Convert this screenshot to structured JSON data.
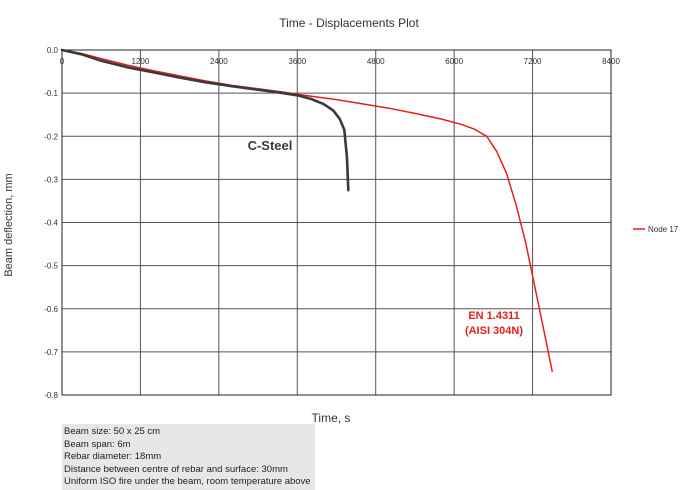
{
  "chart_data": {
    "type": "line",
    "title": "Time - Displacements Plot",
    "xlabel": "Time, s",
    "ylabel": "Beam deflection, mm",
    "xlim": [
      0,
      8400
    ],
    "ylim": [
      -0.8,
      0.0
    ],
    "x_ticks": [
      "0",
      "1200",
      "2400",
      "3600",
      "4800",
      "6000",
      "7200",
      "8400"
    ],
    "y_ticks": [
      "0.0",
      "-0.1",
      "-0.2",
      "-0.3",
      "-0.4",
      "-0.5",
      "-0.6",
      "-0.7",
      "-0.8"
    ],
    "grid": true,
    "legend": {
      "position": "right",
      "entries": [
        "Node 17"
      ]
    },
    "series": [
      {
        "name": "Node 17",
        "color": "#e3201b",
        "x": [
          0,
          300,
          600,
          1000,
          1400,
          1800,
          2200,
          2600,
          3000,
          3400,
          3800,
          4200,
          4600,
          5000,
          5400,
          5800,
          6100,
          6300,
          6500,
          6650,
          6800,
          6950,
          7100,
          7250,
          7400,
          7500
        ],
        "y": [
          0.0,
          -0.008,
          -0.02,
          -0.035,
          -0.048,
          -0.06,
          -0.072,
          -0.082,
          -0.09,
          -0.098,
          -0.107,
          -0.115,
          -0.125,
          -0.135,
          -0.147,
          -0.16,
          -0.172,
          -0.183,
          -0.2,
          -0.235,
          -0.285,
          -0.36,
          -0.45,
          -0.56,
          -0.67,
          -0.745
        ]
      },
      {
        "name": "C-Steel",
        "color": "#3a3a3a",
        "x": [
          0,
          300,
          600,
          1000,
          1400,
          1800,
          2200,
          2600,
          3000,
          3300,
          3600,
          3800,
          4000,
          4150,
          4250,
          4320,
          4360,
          4380
        ],
        "y": [
          0.0,
          -0.01,
          -0.025,
          -0.04,
          -0.052,
          -0.064,
          -0.075,
          -0.084,
          -0.092,
          -0.098,
          -0.105,
          -0.113,
          -0.125,
          -0.14,
          -0.16,
          -0.185,
          -0.25,
          -0.325
        ]
      }
    ],
    "annotations": [
      {
        "text": "C-Steel",
        "color": "#3a3a3a"
      },
      {
        "line1": "EN 1.4311",
        "line2": "(AISI 304N)",
        "color": "#e3201b"
      }
    ]
  },
  "notes": [
    "Beam size: 50 x 25 cm",
    "Beam span: 6m",
    "Rebar diameter: 18mm",
    "Distance between centre of rebar and surface: 30mm",
    "Uniform ISO fire under the beam, room temperature above"
  ]
}
